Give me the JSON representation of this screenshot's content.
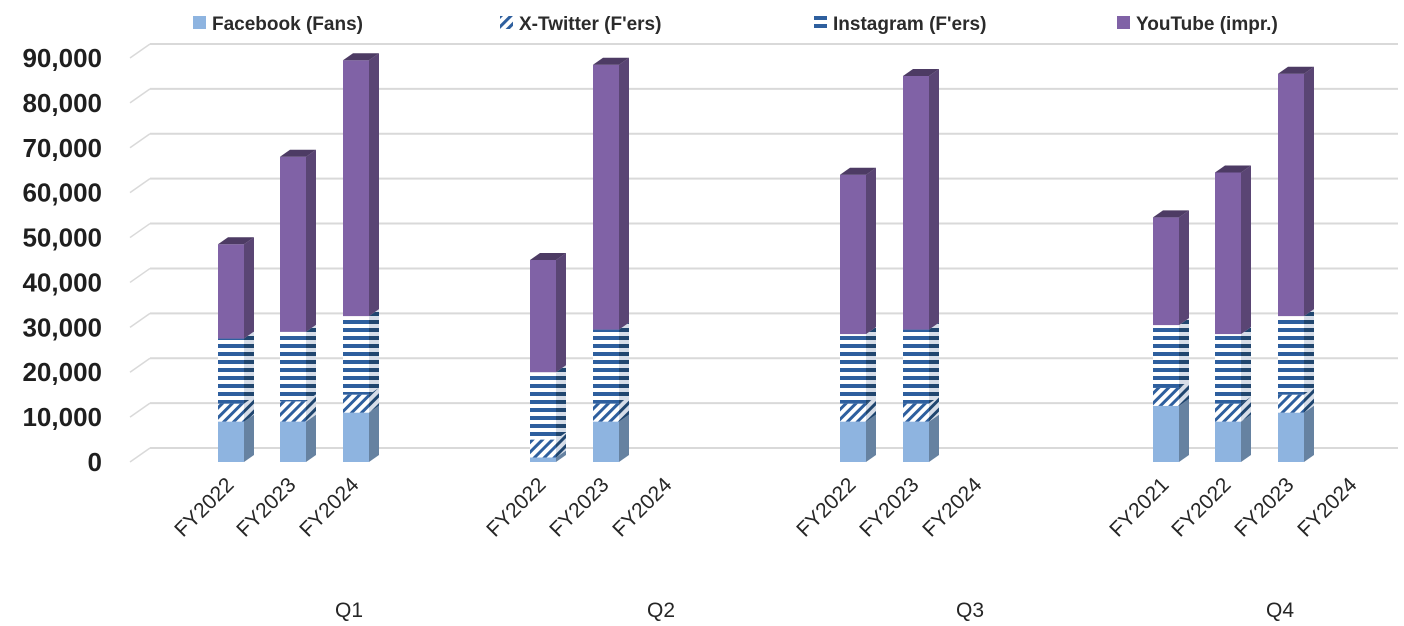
{
  "chart_data": {
    "type": "bar",
    "stacked": true,
    "three_d": true,
    "legend_position": "top",
    "grid": true,
    "ylim": [
      0,
      90000
    ],
    "yticks": [
      "0",
      "10,000",
      "20,000",
      "30,000",
      "40,000",
      "50,000",
      "60,000",
      "70,000",
      "80,000",
      "90,000"
    ],
    "legend": [
      {
        "name": "Facebook (Fans)",
        "color": "#8eb4e0",
        "pattern": "solid"
      },
      {
        "name": "X-Twitter (F'ers)",
        "color": "#2e5f9e",
        "pattern": "diagonal-stripes"
      },
      {
        "name": "Instagram (F'ers)",
        "color": "#2e5f9e",
        "pattern": "horizontal-stripes"
      },
      {
        "name": "YouTube (impr.)",
        "color": "#8062a6",
        "pattern": "solid"
      }
    ],
    "groups": [
      {
        "label": "Q1",
        "categories": [
          "FY2022",
          "FY2023",
          "FY2024"
        ],
        "series": [
          {
            "name": "Facebook (Fans)",
            "values": [
              9000,
              9000,
              11000
            ]
          },
          {
            "name": "X-Twitter (F'ers)",
            "values": [
              4000,
              4500,
              4000
            ]
          },
          {
            "name": "Instagram (F'ers)",
            "values": [
              14500,
              15500,
              17500
            ]
          },
          {
            "name": "YouTube (impr.)",
            "values": [
              21000,
              39000,
              57000
            ]
          }
        ]
      },
      {
        "label": "Q2",
        "categories": [
          "FY2022",
          "FY2023",
          "FY2024"
        ],
        "series": [
          {
            "name": "Facebook (Fans)",
            "values": [
              1000,
              9000,
              null
            ]
          },
          {
            "name": "X-Twitter (F'ers)",
            "values": [
              4000,
              4000,
              null
            ]
          },
          {
            "name": "Instagram (F'ers)",
            "values": [
              15000,
              16500,
              null
            ]
          },
          {
            "name": "YouTube (impr.)",
            "values": [
              25000,
              59000,
              null
            ]
          }
        ]
      },
      {
        "label": "Q3",
        "categories": [
          "FY2022",
          "FY2023",
          "FY2024"
        ],
        "series": [
          {
            "name": "Facebook (Fans)",
            "values": [
              9000,
              9000,
              null
            ]
          },
          {
            "name": "X-Twitter (F'ers)",
            "values": [
              4000,
              4000,
              null
            ]
          },
          {
            "name": "Instagram (F'ers)",
            "values": [
              15500,
              16500,
              null
            ]
          },
          {
            "name": "YouTube (impr.)",
            "values": [
              35500,
              56500,
              null
            ]
          }
        ]
      },
      {
        "label": "Q4",
        "categories": [
          "FY2021",
          "FY2022",
          "FY2023",
          "FY2024"
        ],
        "series": [
          {
            "name": "Facebook (Fans)",
            "values": [
              12500,
              9000,
              11000,
              null
            ]
          },
          {
            "name": "X-Twitter (F'ers)",
            "values": [
              4000,
              4000,
              4000,
              null
            ]
          },
          {
            "name": "Instagram (F'ers)",
            "values": [
              14000,
              15500,
              17500,
              null
            ]
          },
          {
            "name": "YouTube (impr.)",
            "values": [
              24000,
              36000,
              54000,
              null
            ]
          }
        ]
      }
    ]
  }
}
